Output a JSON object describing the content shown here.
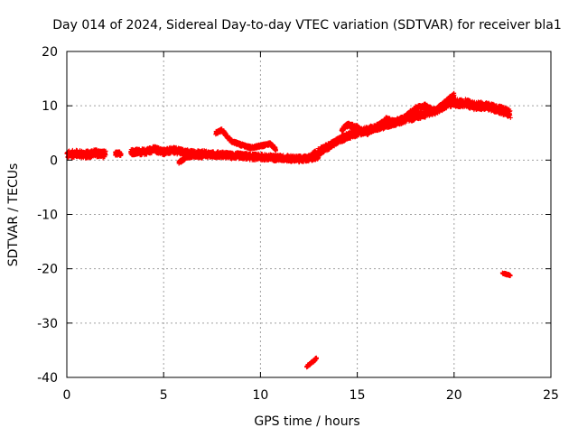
{
  "chart_data": {
    "type": "scatter",
    "title": "Day 014 of 2024, Sidereal Day-to-day VTEC variation (SDTVAR) for receiver bla1",
    "xlabel": "GPS time / hours",
    "ylabel": "SDTVAR / TECUs",
    "xlim": [
      0,
      25
    ],
    "ylim": [
      -40,
      20
    ],
    "xticks": [
      "0",
      "5",
      "10",
      "15",
      "20",
      "25"
    ],
    "yticks": [
      "-40",
      "-30",
      "-20",
      "-10",
      "0",
      "10",
      "20"
    ],
    "grid": true,
    "legend": "none",
    "marker": "plus",
    "color": "#ff0000",
    "series": [
      {
        "name": "SDTVAR",
        "tracks": [
          {
            "x": [
              0.0,
              0.5,
              1.0,
              1.5,
              2.0
            ],
            "y": [
              1.0,
              1.2,
              1.0,
              1.3,
              1.0
            ],
            "spread": 1.4
          },
          {
            "x": [
              2.5,
              2.8
            ],
            "y": [
              1.2,
              1.2
            ],
            "spread": 0.8
          },
          {
            "x": [
              3.3,
              4.0,
              4.5,
              5.0,
              5.5,
              6.0,
              6.5,
              7.0,
              7.5,
              8.0,
              8.5,
              9.0,
              9.5,
              10.0,
              10.5,
              11.0,
              11.5,
              12.0,
              12.5,
              13.0
            ],
            "y": [
              1.5,
              1.5,
              2.0,
              1.5,
              1.8,
              1.5,
              1.2,
              1.2,
              1.0,
              1.0,
              0.8,
              0.8,
              0.6,
              0.6,
              0.4,
              0.4,
              0.3,
              0.2,
              0.3,
              0.8
            ],
            "spread": 1.2
          },
          {
            "x": [
              5.8,
              6.2,
              6.6,
              7.0
            ],
            "y": [
              -0.4,
              0.6,
              0.8,
              0.6
            ],
            "spread": 0.6
          },
          {
            "x": [
              7.7,
              8.0,
              8.5,
              9.0,
              9.5,
              10.0,
              10.5,
              10.8
            ],
            "y": [
              5.0,
              5.5,
              3.5,
              2.8,
              2.3,
              2.6,
              3.0,
              2.0
            ],
            "spread": 0.6
          },
          {
            "x": [
              10.5,
              11.0,
              11.5
            ],
            "y": [
              0.8,
              0.5,
              0.0
            ],
            "spread": 0.5
          },
          {
            "x": [
              12.7,
              13.0,
              13.5,
              14.0,
              14.5,
              15.0,
              15.5,
              16.0,
              16.5,
              17.0,
              17.5,
              18.0,
              18.5,
              19.0,
              19.5,
              19.9
            ],
            "y": [
              0.8,
              1.5,
              2.5,
              3.5,
              4.5,
              5.0,
              5.5,
              6.0,
              6.5,
              7.0,
              7.5,
              8.0,
              8.5,
              9.0,
              10.0,
              11.0
            ],
            "spread": 1.3
          },
          {
            "x": [
              14.2,
              14.5,
              15.0,
              15.5,
              16.0,
              16.5,
              17.0,
              17.5,
              18.0,
              18.5,
              19.0,
              19.5,
              20.0
            ],
            "y": [
              5.5,
              6.5,
              6.0,
              5.0,
              6.0,
              7.5,
              7.0,
              8.0,
              9.5,
              10.0,
              9.0,
              10.5,
              12.0
            ],
            "spread": 0.8
          },
          {
            "x": [
              19.8,
              20.2,
              20.6,
              21.0,
              21.4,
              21.8,
              22.2,
              22.6,
              22.9
            ],
            "y": [
              10.5,
              10.5,
              10.5,
              10.0,
              10.0,
              9.8,
              9.5,
              9.0,
              8.5
            ],
            "spread": 1.5
          },
          {
            "x": [
              12.4,
              12.6,
              12.8,
              12.9
            ],
            "y": [
              -38.0,
              -37.4,
              -36.8,
              -36.3
            ],
            "spread": 0.4
          },
          {
            "x": [
              22.5,
              22.7,
              22.9
            ],
            "y": [
              -20.8,
              -21.0,
              -21.2
            ],
            "spread": 0.3
          }
        ]
      }
    ]
  }
}
